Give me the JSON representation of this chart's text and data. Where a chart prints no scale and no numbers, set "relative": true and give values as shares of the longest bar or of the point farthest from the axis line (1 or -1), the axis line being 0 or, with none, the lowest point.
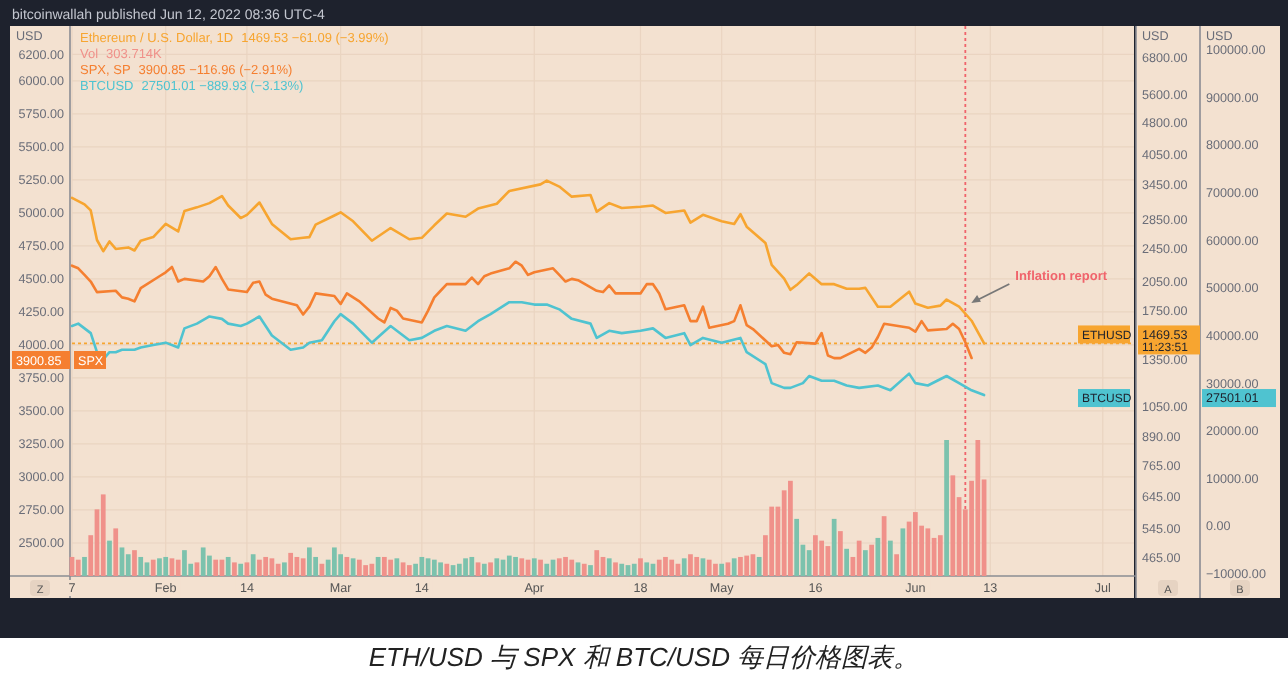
{
  "chart_data": [
    {
      "type": "line",
      "xlim": [
        "2022-01-17",
        "2022-07-06"
      ],
      "xticks": [
        {
          "value": "2022-01-17",
          "label": "7"
        },
        {
          "value": "2022-02-01",
          "label": "Feb"
        },
        {
          "value": "2022-02-14",
          "label": "14"
        },
        {
          "value": "2022-03-01",
          "label": "Mar"
        },
        {
          "value": "2022-03-14",
          "label": "14"
        },
        {
          "value": "2022-04-01",
          "label": "Apr"
        },
        {
          "value": "2022-04-18",
          "label": "18"
        },
        {
          "value": "2022-05-01",
          "label": "May"
        },
        {
          "value": "2022-05-16",
          "label": "16"
        },
        {
          "value": "2022-06-01",
          "label": "Jun"
        },
        {
          "value": "2022-06-13",
          "label": "13"
        },
        {
          "value": "2022-07-01",
          "label": "Jul"
        }
      ],
      "ylabel": "USD",
      "y2label": "USD",
      "y3label": "USD",
      "ylim": [
        2250,
        6415
      ],
      "yticks": [
        {
          "value": 6200,
          "label": "6200.00"
        },
        {
          "value": 6000,
          "label": "6000.00"
        },
        {
          "value": 5750,
          "label": "5750.00"
        },
        {
          "value": 5500,
          "label": "5500.00"
        },
        {
          "value": 5250,
          "label": "5250.00"
        },
        {
          "value": 5000,
          "label": "5000.00"
        },
        {
          "value": 4750,
          "label": "4750.00"
        },
        {
          "value": 4500,
          "label": "4500.00"
        },
        {
          "value": 4250,
          "label": "4250.00"
        },
        {
          "value": 4000,
          "label": "4000.00"
        },
        {
          "value": 3750,
          "label": "3750.00"
        },
        {
          "value": 3500,
          "label": "3500.00"
        },
        {
          "value": 3250,
          "label": "3250.00"
        },
        {
          "value": 3000,
          "label": "3000.00"
        },
        {
          "value": 2750,
          "label": "2750.00"
        },
        {
          "value": 2500,
          "label": "2500.00"
        }
      ],
      "log": "y2",
      "y2lim": [
        422,
        8070
      ],
      "y2ticks": [
        {
          "value": 6800,
          "label": "6800.00"
        },
        {
          "value": 5600,
          "label": "5600.00"
        },
        {
          "value": 4800,
          "label": "4800.00"
        },
        {
          "value": 4050,
          "label": "4050.00"
        },
        {
          "value": 3450,
          "label": "3450.00"
        },
        {
          "value": 2850,
          "label": "2850.00"
        },
        {
          "value": 2450,
          "label": "2450.00"
        },
        {
          "value": 2050,
          "label": "2050.00"
        },
        {
          "value": 1750,
          "label": "1750.00"
        },
        {
          "value": 1350,
          "label": "1350.00"
        },
        {
          "value": 1050,
          "label": "1050.00"
        },
        {
          "value": 890,
          "label": "890.00"
        },
        {
          "value": 765,
          "label": "765.00"
        },
        {
          "value": 645,
          "label": "645.00"
        },
        {
          "value": 545,
          "label": "545.00"
        },
        {
          "value": 465,
          "label": "465.00"
        }
      ],
      "y3lim": [
        -10500,
        105000
      ],
      "y3ticks": [
        {
          "value": 100000,
          "label": "100000.00"
        },
        {
          "value": 90000,
          "label": "90000.00"
        },
        {
          "value": 80000,
          "label": "80000.00"
        },
        {
          "value": 70000,
          "label": "70000.00"
        },
        {
          "value": 60000,
          "label": "60000.00"
        },
        {
          "value": 50000,
          "label": "50000.00"
        },
        {
          "value": 40000,
          "label": "40000.00"
        },
        {
          "value": 30000,
          "label": "30000.00"
        },
        {
          "value": 20000,
          "label": "20000.00"
        },
        {
          "value": 10000,
          "label": "10000.00"
        },
        {
          "value": 0,
          "label": "0.00"
        },
        {
          "value": -10000,
          "label": "−10000.00"
        }
      ],
      "grid": true,
      "legend": "top left",
      "ref_lines": [
        {
          "axis": "x",
          "value": "2022-06-09",
          "color": "#f0636b",
          "line_style": "dotted"
        },
        {
          "axis": "y2",
          "value": 1469.53,
          "color": "#f7a530",
          "line_style": "dotted"
        }
      ],
      "annotations": [
        "Inflation report",
        "bitcoinwallah published Jun 12, 2022 08:36 UTC-4",
        "1469.53 −61.09 (−3.99%)",
        "3900.85 −116.96 (−2.91%)",
        "27501.01 −889.93 (−3.13%)",
        "3900.85",
        "SPX",
        "ETHUSD",
        "1469.53",
        "11:23:51",
        "BTCUSD",
        "27501.01",
        "Z",
        "A",
        "B",
        "ETH/USD 与 SPX 和 BTC/USD 每日价格图表。"
      ],
      "series": [
        {
          "name": "Ethereum / U.S. Dollar, 1D",
          "axis": "y2",
          "color": "#f7a530",
          "x": [
            "2022-01-17",
            "2022-01-19",
            "2022-01-20",
            "2022-01-21",
            "2022-01-22",
            "2022-01-23",
            "2022-01-24",
            "2022-01-26",
            "2022-01-27",
            "2022-01-28",
            "2022-01-30",
            "2022-02-01",
            "2022-02-03",
            "2022-02-04",
            "2022-02-06",
            "2022-02-08",
            "2022-02-10",
            "2022-02-11",
            "2022-02-13",
            "2022-02-14",
            "2022-02-16",
            "2022-02-18",
            "2022-02-21",
            "2022-02-23",
            "2022-02-24",
            "2022-02-25",
            "2022-02-28",
            "2022-03-01",
            "2022-03-03",
            "2022-03-06",
            "2022-03-09",
            "2022-03-12",
            "2022-03-14",
            "2022-03-16",
            "2022-03-18",
            "2022-03-21",
            "2022-03-23",
            "2022-03-26",
            "2022-03-28",
            "2022-04-02",
            "2022-04-03",
            "2022-04-05",
            "2022-04-07",
            "2022-04-10",
            "2022-04-11",
            "2022-04-13",
            "2022-04-15",
            "2022-04-18",
            "2022-04-20",
            "2022-04-22",
            "2022-04-25",
            "2022-04-26",
            "2022-04-28",
            "2022-05-01",
            "2022-05-03",
            "2022-05-04",
            "2022-05-05",
            "2022-05-08",
            "2022-05-09",
            "2022-05-11",
            "2022-05-12",
            "2022-05-13",
            "2022-05-15",
            "2022-05-17",
            "2022-05-19",
            "2022-05-21",
            "2022-05-23",
            "2022-05-24",
            "2022-05-26",
            "2022-05-28",
            "2022-05-31",
            "2022-06-01",
            "2022-06-03",
            "2022-06-05",
            "2022-06-06",
            "2022-06-08",
            "2022-06-10",
            "2022-06-12"
          ],
          "values": [
            3210,
            3100,
            3000,
            2560,
            2410,
            2540,
            2440,
            2460,
            2420,
            2550,
            2600,
            2790,
            2680,
            2990,
            3050,
            3120,
            3240,
            3080,
            2880,
            2930,
            3130,
            2790,
            2570,
            2590,
            2600,
            2780,
            2920,
            2970,
            2830,
            2550,
            2730,
            2570,
            2590,
            2770,
            2950,
            2900,
            3030,
            3110,
            3330,
            3450,
            3520,
            3410,
            3230,
            3260,
            2980,
            3120,
            3040,
            3060,
            3080,
            2960,
            3000,
            2810,
            2930,
            2830,
            2790,
            2940,
            2750,
            2520,
            2240,
            2080,
            1960,
            2010,
            2140,
            2020,
            2020,
            1970,
            1970,
            1980,
            1790,
            1790,
            1940,
            1820,
            1780,
            1800,
            1860,
            1790,
            1660,
            1469.53
          ]
        },
        {
          "name": "SPX, SP",
          "axis": "y",
          "color": "#f57f30",
          "x": [
            "2022-01-17",
            "2022-01-18",
            "2022-01-19",
            "2022-01-20",
            "2022-01-21",
            "2022-01-24",
            "2022-01-25",
            "2022-01-26",
            "2022-01-27",
            "2022-01-28",
            "2022-01-31",
            "2022-02-01",
            "2022-02-02",
            "2022-02-03",
            "2022-02-04",
            "2022-02-07",
            "2022-02-08",
            "2022-02-09",
            "2022-02-10",
            "2022-02-11",
            "2022-02-14",
            "2022-02-15",
            "2022-02-16",
            "2022-02-17",
            "2022-02-18",
            "2022-02-22",
            "2022-02-23",
            "2022-02-24",
            "2022-02-25",
            "2022-02-28",
            "2022-03-01",
            "2022-03-02",
            "2022-03-03",
            "2022-03-04",
            "2022-03-07",
            "2022-03-08",
            "2022-03-09",
            "2022-03-10",
            "2022-03-11",
            "2022-03-14",
            "2022-03-15",
            "2022-03-16",
            "2022-03-17",
            "2022-03-18",
            "2022-03-21",
            "2022-03-22",
            "2022-03-23",
            "2022-03-24",
            "2022-03-25",
            "2022-03-28",
            "2022-03-29",
            "2022-03-30",
            "2022-03-31",
            "2022-04-01",
            "2022-04-04",
            "2022-04-05",
            "2022-04-06",
            "2022-04-07",
            "2022-04-08",
            "2022-04-11",
            "2022-04-12",
            "2022-04-13",
            "2022-04-14",
            "2022-04-18",
            "2022-04-19",
            "2022-04-20",
            "2022-04-21",
            "2022-04-22",
            "2022-04-25",
            "2022-04-26",
            "2022-04-27",
            "2022-04-28",
            "2022-04-29",
            "2022-05-02",
            "2022-05-03",
            "2022-05-04",
            "2022-05-05",
            "2022-05-06",
            "2022-05-09",
            "2022-05-10",
            "2022-05-11",
            "2022-05-12",
            "2022-05-13",
            "2022-05-16",
            "2022-05-17",
            "2022-05-18",
            "2022-05-19",
            "2022-05-20",
            "2022-05-23",
            "2022-05-24",
            "2022-05-25",
            "2022-05-26",
            "2022-05-27",
            "2022-05-31",
            "2022-06-01",
            "2022-06-02",
            "2022-06-03",
            "2022-06-06",
            "2022-06-07",
            "2022-06-08",
            "2022-06-09",
            "2022-06-10"
          ],
          "values": [
            4600,
            4580,
            4530,
            4480,
            4400,
            4410,
            4360,
            4350,
            4330,
            4430,
            4520,
            4550,
            4590,
            4480,
            4500,
            4480,
            4520,
            4590,
            4500,
            4420,
            4400,
            4470,
            4480,
            4380,
            4350,
            4300,
            4230,
            4290,
            4390,
            4370,
            4310,
            4390,
            4360,
            4330,
            4200,
            4170,
            4280,
            4260,
            4200,
            4170,
            4260,
            4360,
            4410,
            4460,
            4460,
            4510,
            4460,
            4520,
            4540,
            4580,
            4630,
            4600,
            4530,
            4550,
            4580,
            4530,
            4480,
            4500,
            4490,
            4410,
            4400,
            4450,
            4390,
            4390,
            4460,
            4460,
            4390,
            4270,
            4300,
            4180,
            4180,
            4290,
            4130,
            4160,
            4180,
            4300,
            4150,
            4120,
            3990,
            4000,
            3940,
            3930,
            4020,
            4010,
            4090,
            3920,
            3900,
            3900,
            3970,
            3940,
            3980,
            4060,
            4160,
            4130,
            4100,
            4180,
            4110,
            4120,
            4160,
            4120,
            4020,
            3900.85
          ]
        },
        {
          "name": "BTCUSD",
          "axis": "y3",
          "color": "#4fc3d0",
          "x": [
            "2022-01-17",
            "2022-01-18",
            "2022-01-19",
            "2022-01-20",
            "2022-01-21",
            "2022-01-22",
            "2022-01-23",
            "2022-01-24",
            "2022-01-25",
            "2022-01-26",
            "2022-01-27",
            "2022-01-28",
            "2022-01-30",
            "2022-02-01",
            "2022-02-03",
            "2022-02-04",
            "2022-02-06",
            "2022-02-08",
            "2022-02-10",
            "2022-02-11",
            "2022-02-13",
            "2022-02-14",
            "2022-02-16",
            "2022-02-18",
            "2022-02-21",
            "2022-02-23",
            "2022-02-24",
            "2022-02-26",
            "2022-02-28",
            "2022-03-01",
            "2022-03-03",
            "2022-03-06",
            "2022-03-09",
            "2022-03-12",
            "2022-03-14",
            "2022-03-16",
            "2022-03-18",
            "2022-03-21",
            "2022-03-23",
            "2022-03-25",
            "2022-03-28",
            "2022-03-30",
            "2022-04-01",
            "2022-04-03",
            "2022-04-05",
            "2022-04-07",
            "2022-04-10",
            "2022-04-11",
            "2022-04-13",
            "2022-04-15",
            "2022-04-18",
            "2022-04-20",
            "2022-04-22",
            "2022-04-25",
            "2022-04-26",
            "2022-04-28",
            "2022-05-01",
            "2022-05-04",
            "2022-05-05",
            "2022-05-08",
            "2022-05-09",
            "2022-05-11",
            "2022-05-12",
            "2022-05-14",
            "2022-05-15",
            "2022-05-17",
            "2022-05-19",
            "2022-05-21",
            "2022-05-23",
            "2022-05-26",
            "2022-05-28",
            "2022-05-31",
            "2022-06-01",
            "2022-06-03",
            "2022-06-06",
            "2022-06-08",
            "2022-06-10",
            "2022-06-12"
          ],
          "values": [
            42000,
            42500,
            41500,
            40500,
            36500,
            35000,
            36500,
            36500,
            37000,
            37000,
            37000,
            37500,
            38000,
            38500,
            37500,
            41500,
            42500,
            44000,
            43500,
            42500,
            42000,
            42500,
            44000,
            40000,
            37000,
            37500,
            38500,
            39000,
            43000,
            44500,
            42500,
            38500,
            42000,
            39000,
            39500,
            41000,
            42000,
            41000,
            43000,
            44500,
            47000,
            47000,
            46500,
            46500,
            45500,
            43500,
            42500,
            39500,
            41000,
            40500,
            41000,
            41500,
            39500,
            40500,
            38000,
            39500,
            38500,
            39500,
            36500,
            34000,
            30000,
            29000,
            29000,
            30000,
            31500,
            30500,
            30500,
            29500,
            29000,
            29500,
            28500,
            32000,
            30000,
            29500,
            31500,
            30000,
            28500,
            27501.01
          ]
        }
      ]
    },
    {
      "type": "bar",
      "relative": true,
      "legend": "top left",
      "xlim": [
        "2022-01-17",
        "2022-07-06"
      ],
      "annotations": [
        "303.714K"
      ],
      "x": [
        "2022-01-17",
        "2022-01-18",
        "2022-01-19",
        "2022-01-20",
        "2022-01-21",
        "2022-01-22",
        "2022-01-23",
        "2022-01-24",
        "2022-01-25",
        "2022-01-26",
        "2022-01-27",
        "2022-01-28",
        "2022-01-29",
        "2022-01-30",
        "2022-01-31",
        "2022-02-01",
        "2022-02-02",
        "2022-02-03",
        "2022-02-04",
        "2022-02-05",
        "2022-02-06",
        "2022-02-07",
        "2022-02-08",
        "2022-02-09",
        "2022-02-10",
        "2022-02-11",
        "2022-02-12",
        "2022-02-13",
        "2022-02-14",
        "2022-02-15",
        "2022-02-16",
        "2022-02-17",
        "2022-02-18",
        "2022-02-19",
        "2022-02-20",
        "2022-02-21",
        "2022-02-22",
        "2022-02-23",
        "2022-02-24",
        "2022-02-25",
        "2022-02-26",
        "2022-02-27",
        "2022-02-28",
        "2022-03-01",
        "2022-03-02",
        "2022-03-03",
        "2022-03-04",
        "2022-03-05",
        "2022-03-06",
        "2022-03-07",
        "2022-03-08",
        "2022-03-09",
        "2022-03-10",
        "2022-03-11",
        "2022-03-12",
        "2022-03-13",
        "2022-03-14",
        "2022-03-15",
        "2022-03-16",
        "2022-03-17",
        "2022-03-18",
        "2022-03-19",
        "2022-03-20",
        "2022-03-21",
        "2022-03-22",
        "2022-03-23",
        "2022-03-24",
        "2022-03-25",
        "2022-03-26",
        "2022-03-27",
        "2022-03-28",
        "2022-03-29",
        "2022-03-30",
        "2022-03-31",
        "2022-04-01",
        "2022-04-02",
        "2022-04-03",
        "2022-04-04",
        "2022-04-05",
        "2022-04-06",
        "2022-04-07",
        "2022-04-08",
        "2022-04-09",
        "2022-04-10",
        "2022-04-11",
        "2022-04-12",
        "2022-04-13",
        "2022-04-14",
        "2022-04-15",
        "2022-04-16",
        "2022-04-17",
        "2022-04-18",
        "2022-04-19",
        "2022-04-20",
        "2022-04-21",
        "2022-04-22",
        "2022-04-23",
        "2022-04-24",
        "2022-04-25",
        "2022-04-26",
        "2022-04-27",
        "2022-04-28",
        "2022-04-29",
        "2022-04-30",
        "2022-05-01",
        "2022-05-02",
        "2022-05-03",
        "2022-05-04",
        "2022-05-05",
        "2022-05-06",
        "2022-05-07",
        "2022-05-08",
        "2022-05-09",
        "2022-05-10",
        "2022-05-11",
        "2022-05-12",
        "2022-05-13",
        "2022-05-14",
        "2022-05-15",
        "2022-05-16",
        "2022-05-17",
        "2022-05-18",
        "2022-05-19",
        "2022-05-20",
        "2022-05-21",
        "2022-05-22",
        "2022-05-23",
        "2022-05-24",
        "2022-05-25",
        "2022-05-26",
        "2022-05-27",
        "2022-05-28",
        "2022-05-29",
        "2022-05-30",
        "2022-05-31",
        "2022-06-01",
        "2022-06-02",
        "2022-06-03",
        "2022-06-04",
        "2022-06-05",
        "2022-06-06",
        "2022-06-07",
        "2022-06-08",
        "2022-06-09",
        "2022-06-10",
        "2022-06-11",
        "2022-06-12"
      ],
      "series": [
        {
          "name": "Vol",
          "color": "#f0918a",
          "values": [
            0.14,
            0.12,
            0.14,
            0.3,
            0.49,
            0.6,
            0.26,
            0.35,
            0.21,
            0.16,
            0.19,
            0.14,
            0.1,
            0.12,
            0.13,
            0.14,
            0.13,
            0.12,
            0.19,
            0.09,
            0.1,
            0.21,
            0.15,
            0.12,
            0.12,
            0.14,
            0.1,
            0.09,
            0.1,
            0.16,
            0.12,
            0.14,
            0.13,
            0.09,
            0.1,
            0.17,
            0.14,
            0.13,
            0.21,
            0.14,
            0.09,
            0.12,
            0.21,
            0.16,
            0.14,
            0.13,
            0.12,
            0.08,
            0.09,
            0.14,
            0.14,
            0.12,
            0.13,
            0.1,
            0.08,
            0.09,
            0.14,
            0.13,
            0.12,
            0.1,
            0.09,
            0.08,
            0.09,
            0.13,
            0.14,
            0.1,
            0.09,
            0.1,
            0.13,
            0.12,
            0.15,
            0.14,
            0.13,
            0.12,
            0.13,
            0.12,
            0.09,
            0.12,
            0.13,
            0.14,
            0.12,
            0.1,
            0.09,
            0.08,
            0.19,
            0.14,
            0.13,
            0.1,
            0.09,
            0.08,
            0.09,
            0.13,
            0.1,
            0.09,
            0.12,
            0.14,
            0.12,
            0.09,
            0.13,
            0.16,
            0.14,
            0.13,
            0.12,
            0.09,
            0.09,
            0.1,
            0.13,
            0.14,
            0.15,
            0.16,
            0.14,
            0.3,
            0.51,
            0.51,
            0.63,
            0.7,
            0.42,
            0.23,
            0.19,
            0.3,
            0.26,
            0.22,
            0.42,
            0.33,
            0.2,
            0.14,
            0.26,
            0.19,
            0.23,
            0.28,
            0.44,
            0.26,
            0.16,
            0.35,
            0.4,
            0.47,
            0.37,
            0.35,
            0.28,
            0.3,
            1,
            0.74,
            0.58,
            0.49,
            0.7,
            1,
            0.71
          ],
          "colors": [
            "#f0918a",
            "#f0918a",
            "#7cc2ad",
            "#f0918a",
            "#f0918a",
            "#f0918a",
            "#7cc2ad",
            "#f0918a",
            "#7cc2ad",
            "#7cc2ad",
            "#f0918a",
            "#7cc2ad",
            "#7cc2ad",
            "#f0918a",
            "#7cc2ad",
            "#7cc2ad",
            "#f0918a",
            "#f0918a",
            "#7cc2ad",
            "#7cc2ad",
            "#f0918a",
            "#7cc2ad",
            "#7cc2ad",
            "#f0918a",
            "#f0918a",
            "#7cc2ad",
            "#f0918a",
            "#7cc2ad",
            "#f0918a",
            "#7cc2ad",
            "#f0918a",
            "#f0918a",
            "#f0918a",
            "#f0918a",
            "#7cc2ad",
            "#f0918a",
            "#f0918a",
            "#f0918a",
            "#7cc2ad",
            "#7cc2ad",
            "#f0918a",
            "#7cc2ad",
            "#7cc2ad",
            "#7cc2ad",
            "#f0918a",
            "#7cc2ad",
            "#f0918a",
            "#f0918a",
            "#f0918a",
            "#7cc2ad",
            "#f0918a",
            "#f0918a",
            "#7cc2ad",
            "#f0918a",
            "#f0918a",
            "#7cc2ad",
            "#7cc2ad",
            "#7cc2ad",
            "#7cc2ad",
            "#7cc2ad",
            "#f0918a",
            "#7cc2ad",
            "#7cc2ad",
            "#7cc2ad",
            "#7cc2ad",
            "#f0918a",
            "#7cc2ad",
            "#f0918a",
            "#7cc2ad",
            "#7cc2ad",
            "#7cc2ad",
            "#7cc2ad",
            "#f0918a",
            "#f0918a",
            "#7cc2ad",
            "#f0918a",
            "#7cc2ad",
            "#7cc2ad",
            "#f0918a",
            "#f0918a",
            "#f0918a",
            "#7cc2ad",
            "#f0918a",
            "#7cc2ad",
            "#f0918a",
            "#f0918a",
            "#7cc2ad",
            "#f0918a",
            "#7cc2ad",
            "#7cc2ad",
            "#7cc2ad",
            "#f0918a",
            "#7cc2ad",
            "#7cc2ad",
            "#f0918a",
            "#f0918a",
            "#f0918a",
            "#f0918a",
            "#7cc2ad",
            "#f0918a",
            "#f0918a",
            "#7cc2ad",
            "#f0918a",
            "#f0918a",
            "#7cc2ad",
            "#f0918a",
            "#7cc2ad",
            "#f0918a",
            "#f0918a",
            "#f0918a",
            "#7cc2ad",
            "#f0918a",
            "#f0918a",
            "#f0918a",
            "#f0918a",
            "#f0918a",
            "#7cc2ad",
            "#7cc2ad",
            "#7cc2ad",
            "#f0918a",
            "#f0918a",
            "#f0918a",
            "#7cc2ad",
            "#f0918a",
            "#7cc2ad",
            "#f0918a",
            "#f0918a",
            "#7cc2ad",
            "#f0918a",
            "#7cc2ad",
            "#f0918a",
            "#7cc2ad",
            "#f0918a",
            "#7cc2ad",
            "#f0918a",
            "#f0918a",
            "#f0918a",
            "#f0918a",
            "#f0918a",
            "#f0918a",
            "#7cc2ad",
            "#f0918a",
            "#f0918a",
            "#f0918a",
            "#f0918a",
            "#f0918a",
            "#f0918a"
          ]
        }
      ]
    }
  ]
}
